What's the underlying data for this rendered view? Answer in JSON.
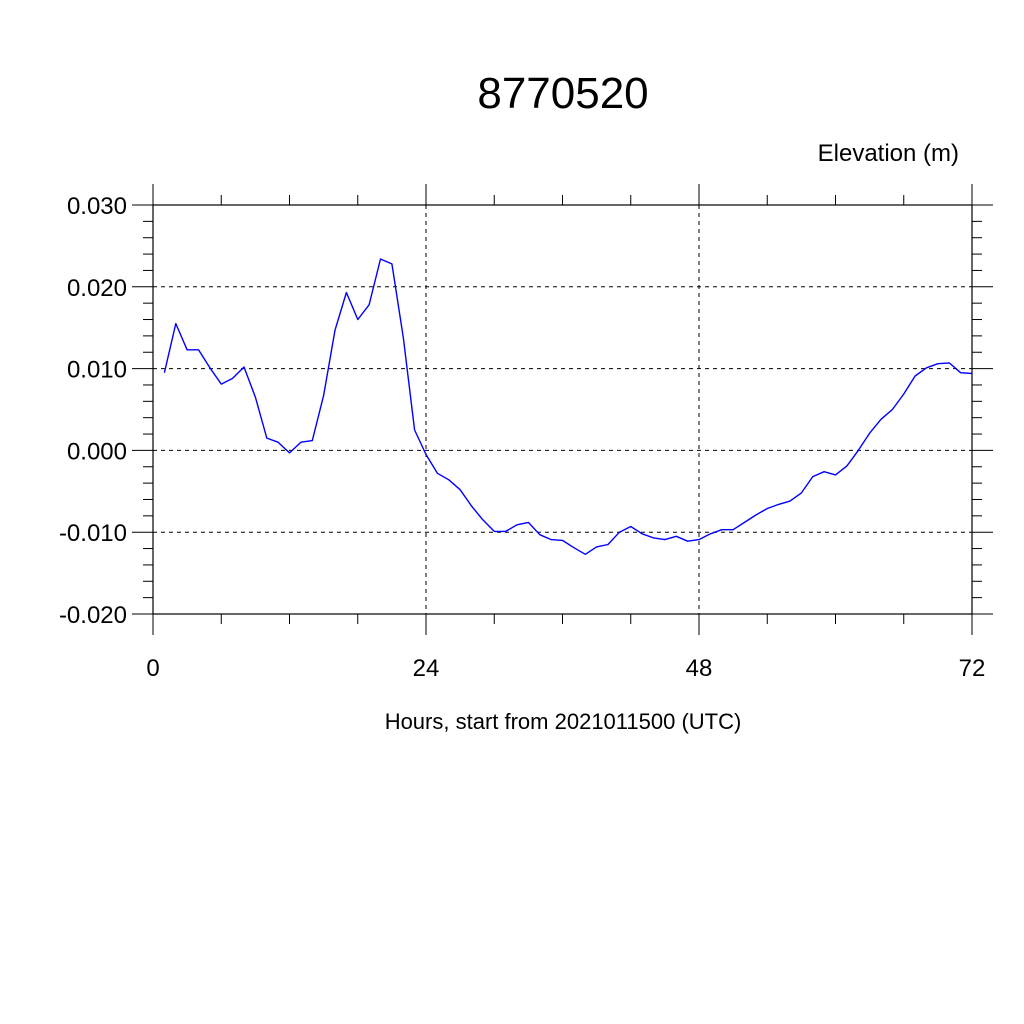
{
  "chart_data": {
    "type": "line",
    "title": "8770520",
    "unit_label": "Elevation (m)",
    "xlabel": "Hours, start from 2021011500 (UTC)",
    "xlim": [
      0,
      72
    ],
    "ylim": [
      -0.02,
      0.03
    ],
    "x_ticks": [
      {
        "value": 0,
        "label": "0"
      },
      {
        "value": 24,
        "label": "24"
      },
      {
        "value": 48,
        "label": "48"
      },
      {
        "value": 72,
        "label": "72"
      }
    ],
    "y_ticks": [
      {
        "value": 0.03,
        "label": "0.030"
      },
      {
        "value": 0.02,
        "label": "0.020"
      },
      {
        "value": 0.01,
        "label": "0.010"
      },
      {
        "value": 0.0,
        "label": "0.000"
      },
      {
        "value": -0.01,
        "label": "-0.010"
      },
      {
        "value": -0.02,
        "label": "-0.020"
      }
    ],
    "grid": true,
    "series": [
      {
        "color": "#0000ff",
        "x": [
          1,
          2,
          3,
          4,
          5,
          6,
          7,
          8,
          9,
          10,
          11,
          12,
          13,
          14,
          15,
          16,
          17,
          18,
          19,
          20,
          21,
          22,
          23,
          24,
          25,
          26,
          27,
          28,
          29,
          30,
          31,
          32,
          33,
          34,
          35,
          36,
          37,
          38,
          39,
          40,
          41,
          42,
          43,
          44,
          45,
          46,
          47,
          48,
          49,
          50,
          51,
          52,
          53,
          54,
          55,
          56,
          57,
          58,
          59,
          60,
          61,
          62,
          63,
          64,
          65,
          66,
          67,
          68,
          69,
          70,
          71,
          72
        ],
        "y": [
          0.0095,
          0.0155,
          0.0123,
          0.0123,
          0.0101,
          0.0081,
          0.0088,
          0.0102,
          0.0065,
          0.0015,
          0.001,
          -0.0003,
          0.001,
          0.0012,
          0.0067,
          0.0147,
          0.0193,
          0.016,
          0.0178,
          0.0234,
          0.0228,
          0.0138,
          0.0025,
          -0.0005,
          -0.0028,
          -0.0036,
          -0.0048,
          -0.0068,
          -0.0085,
          -0.0099,
          -0.0099,
          -0.0091,
          -0.0088,
          -0.0103,
          -0.0109,
          -0.011,
          -0.0119,
          -0.0127,
          -0.0118,
          -0.0115,
          -0.01,
          -0.0093,
          -0.0102,
          -0.0107,
          -0.0109,
          -0.0105,
          -0.0111,
          -0.0109,
          -0.0102,
          -0.0097,
          -0.0097,
          -0.0088,
          -0.0079,
          -0.0071,
          -0.0066,
          -0.0062,
          -0.0052,
          -0.0032,
          -0.0026,
          -0.003,
          -0.0019,
          0.0,
          0.0021,
          0.0038,
          0.005,
          0.0069,
          0.0091,
          0.0101,
          0.0106,
          0.0107,
          0.0095,
          0.0094
        ]
      }
    ]
  }
}
